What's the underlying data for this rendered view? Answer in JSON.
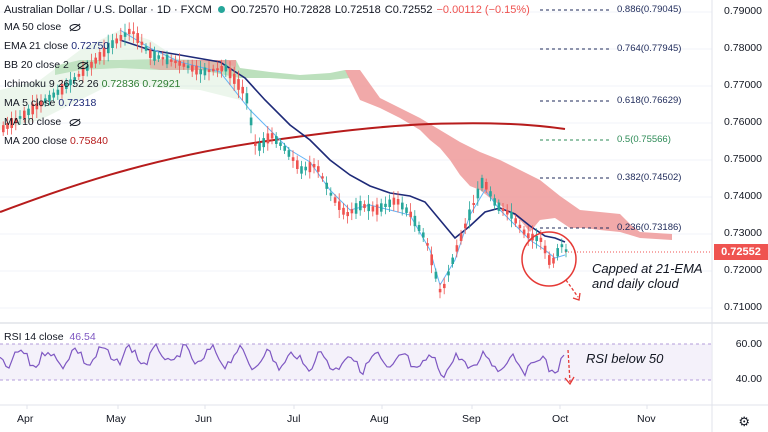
{
  "header": {
    "symbol": "Australian Dollar / U.S. Dollar · 1D · FXCM",
    "open": "O0.72570",
    "high": "H0.72828",
    "low": "L0.72518",
    "close": "C0.72552",
    "change": "−0.00112 (−0.15%)"
  },
  "indicators": [
    {
      "label": "MA 50 close",
      "value": ""
    },
    {
      "label": "EMA 21 close",
      "value": "0.72750"
    },
    {
      "label": "BB 20 close 2",
      "value": ""
    },
    {
      "label": "Ichimoku 9 26 52 26",
      "value": "0.72836  0.72921"
    },
    {
      "label": "MA 5 close",
      "value": "0.72318"
    },
    {
      "label": "MA 10 close",
      "value": ""
    },
    {
      "label": "MA 200 close",
      "value": "0.75840"
    }
  ],
  "price_axis": [
    "0.79000",
    "0.78000",
    "0.77000",
    "0.76000",
    "0.75000",
    "0.74000",
    "0.73000",
    "0.72000",
    "0.71000"
  ],
  "last_price": "0.72552",
  "fib_levels": [
    {
      "label": "0.886(0.79045)",
      "color": "#1e2a5a"
    },
    {
      "label": "0.764(0.77945)",
      "color": "#1e2a5a"
    },
    {
      "label": "0.618(0.76629)",
      "color": "#1e2a5a"
    },
    {
      "label": "0.5(0.75566)",
      "color": "#2e8b57"
    },
    {
      "label": "0.382(0.74502)",
      "color": "#1e2a5a"
    },
    {
      "label": "0.236(0.73186)",
      "color": "#1e2a5a"
    }
  ],
  "annotations": {
    "main": "Capped at 21-EMA\nand daily cloud",
    "rsi": "RSI below 50"
  },
  "rsi": {
    "label": "RSI 14 close",
    "value": "46.54",
    "axis": [
      "60.00",
      "40.00"
    ]
  },
  "time_axis": [
    "Apr",
    "May",
    "Jun",
    "Jul",
    "Aug",
    "Sep",
    "Oct",
    "Nov"
  ],
  "colors": {
    "up": "#26a69a",
    "down": "#ef5350",
    "ema21": "#1e2a78",
    "ma200": "#b71c1c",
    "rsi": "#7e57c2",
    "cloud_bull": "#a5d6a7",
    "cloud_bear": "#ef9a9a"
  },
  "icons": {
    "visibility": "eye-off-icon",
    "settings": "gear-icon"
  }
}
